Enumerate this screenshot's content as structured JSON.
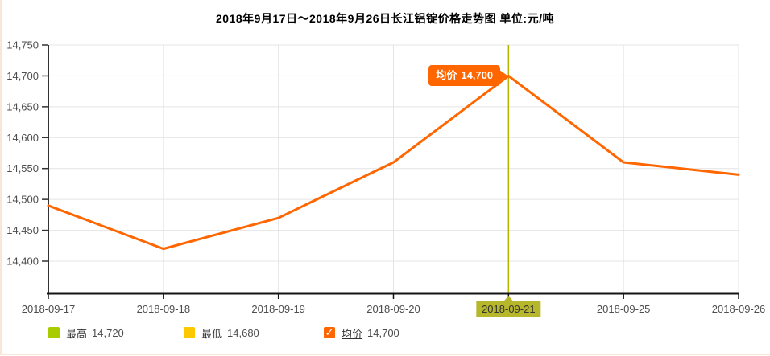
{
  "chart_data": {
    "type": "line",
    "title": "2018年9月17日～2018年9月26日长江铝锭价格走势图 单位:元/吨",
    "categories": [
      "2018-09-17",
      "2018-09-18",
      "2018-09-19",
      "2018-09-20",
      "2018-09-21",
      "2018-09-25",
      "2018-09-26"
    ],
    "series": [
      {
        "name": "均价",
        "color": "#ff6600",
        "values": [
          14490,
          14420,
          14470,
          14560,
          14700,
          14560,
          14540
        ]
      }
    ],
    "y_ticks": [
      "14,750",
      "14,700",
      "14,650",
      "14,600",
      "14,550",
      "14,500",
      "14,450",
      "14,400"
    ],
    "ylim": [
      14400,
      14750
    ],
    "grid": true,
    "legend_position": "bottom",
    "highlighted_category": "2018-09-21",
    "cursor_color": "#b3b300",
    "highlight_bg": "#b7b72b",
    "tooltip": {
      "label": "均价",
      "value": "14,700",
      "color": "#ff6600"
    }
  },
  "legend": {
    "items": [
      {
        "label": "最高",
        "value": "14,720",
        "color": "#a8cc00",
        "checked": false
      },
      {
        "label": "最低",
        "value": "14,680",
        "color": "#fcc800",
        "checked": false
      },
      {
        "label": "均价",
        "value": "14,700",
        "color": "#ff6600",
        "checked": true
      }
    ]
  },
  "frame": {
    "edge_color": "#f8e7d8"
  }
}
